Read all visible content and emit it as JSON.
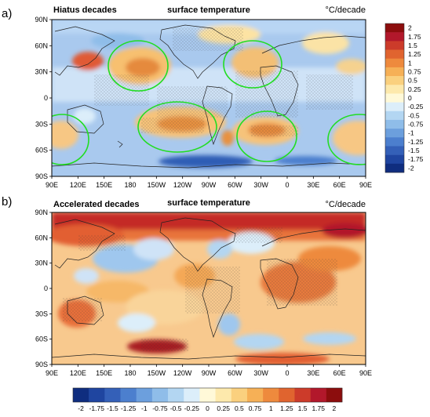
{
  "chart_data": [
    {
      "type": "heatmap",
      "panel_label": "a)",
      "title_left": "Hiatus decades",
      "title": "surface temperature",
      "units": "°C/decade",
      "x_ticks": [
        "90E",
        "120E",
        "150E",
        "180",
        "150W",
        "120W",
        "90W",
        "60W",
        "30W",
        "0",
        "30E",
        "60E",
        "90E"
      ],
      "y_ticks": [
        "90N",
        "60N",
        "30N",
        "0",
        "30S",
        "60S",
        "90S"
      ],
      "stippling": "hatched regions of significance",
      "annotations": "green ellipses marking regions of interest",
      "colorbar": {
        "orientation": "vertical",
        "labels": [
          "2",
          "1.75",
          "1.5",
          "1.25",
          "1",
          "0.75",
          "0.5",
          "0.25",
          "0",
          "-0.25",
          "-0.5",
          "-0.75",
          "-1",
          "-1.25",
          "-1.5",
          "-1.75",
          "-2"
        ],
        "colors": [
          "#8c0d0d",
          "#b2182b",
          "#cc3b2a",
          "#e0642f",
          "#ee8a3d",
          "#f6b056",
          "#fad07e",
          "#fde9ac",
          "#fff9d8",
          "#dceefa",
          "#b3d6f2",
          "#8fbde9",
          "#6c9fdd",
          "#4c7fce",
          "#3460b8",
          "#1f45a0",
          "#0f2d7f"
        ]
      }
    },
    {
      "type": "heatmap",
      "panel_label": "b)",
      "title_left": "Accelerated decades",
      "title": "surface temperature",
      "units": "°C/decade",
      "x_ticks": [
        "90E",
        "120E",
        "150E",
        "180",
        "150W",
        "120W",
        "90W",
        "60W",
        "30W",
        "0",
        "30E",
        "60E",
        "90E"
      ],
      "y_ticks": [
        "90N",
        "60N",
        "30N",
        "0",
        "30S",
        "60S",
        "90S"
      ],
      "stippling": "hatched regions of significance",
      "colorbar": {
        "orientation": "horizontal",
        "labels": [
          "-2",
          "-1.75",
          "-1.5",
          "-1.25",
          "-1",
          "-0.75",
          "-0.5",
          "-0.25",
          "0",
          "0.25",
          "0.5",
          "0.75",
          "1",
          "1.25",
          "1.5",
          "1.75",
          "2"
        ],
        "colors": [
          "#0f2d7f",
          "#1f45a0",
          "#3460b8",
          "#4c7fce",
          "#6c9fdd",
          "#8fbde9",
          "#b3d6f2",
          "#dceefa",
          "#fff9d8",
          "#fde9ac",
          "#fad07e",
          "#f6b056",
          "#ee8a3d",
          "#e0642f",
          "#cc3b2a",
          "#b2182b",
          "#8c0d0d"
        ]
      }
    }
  ]
}
